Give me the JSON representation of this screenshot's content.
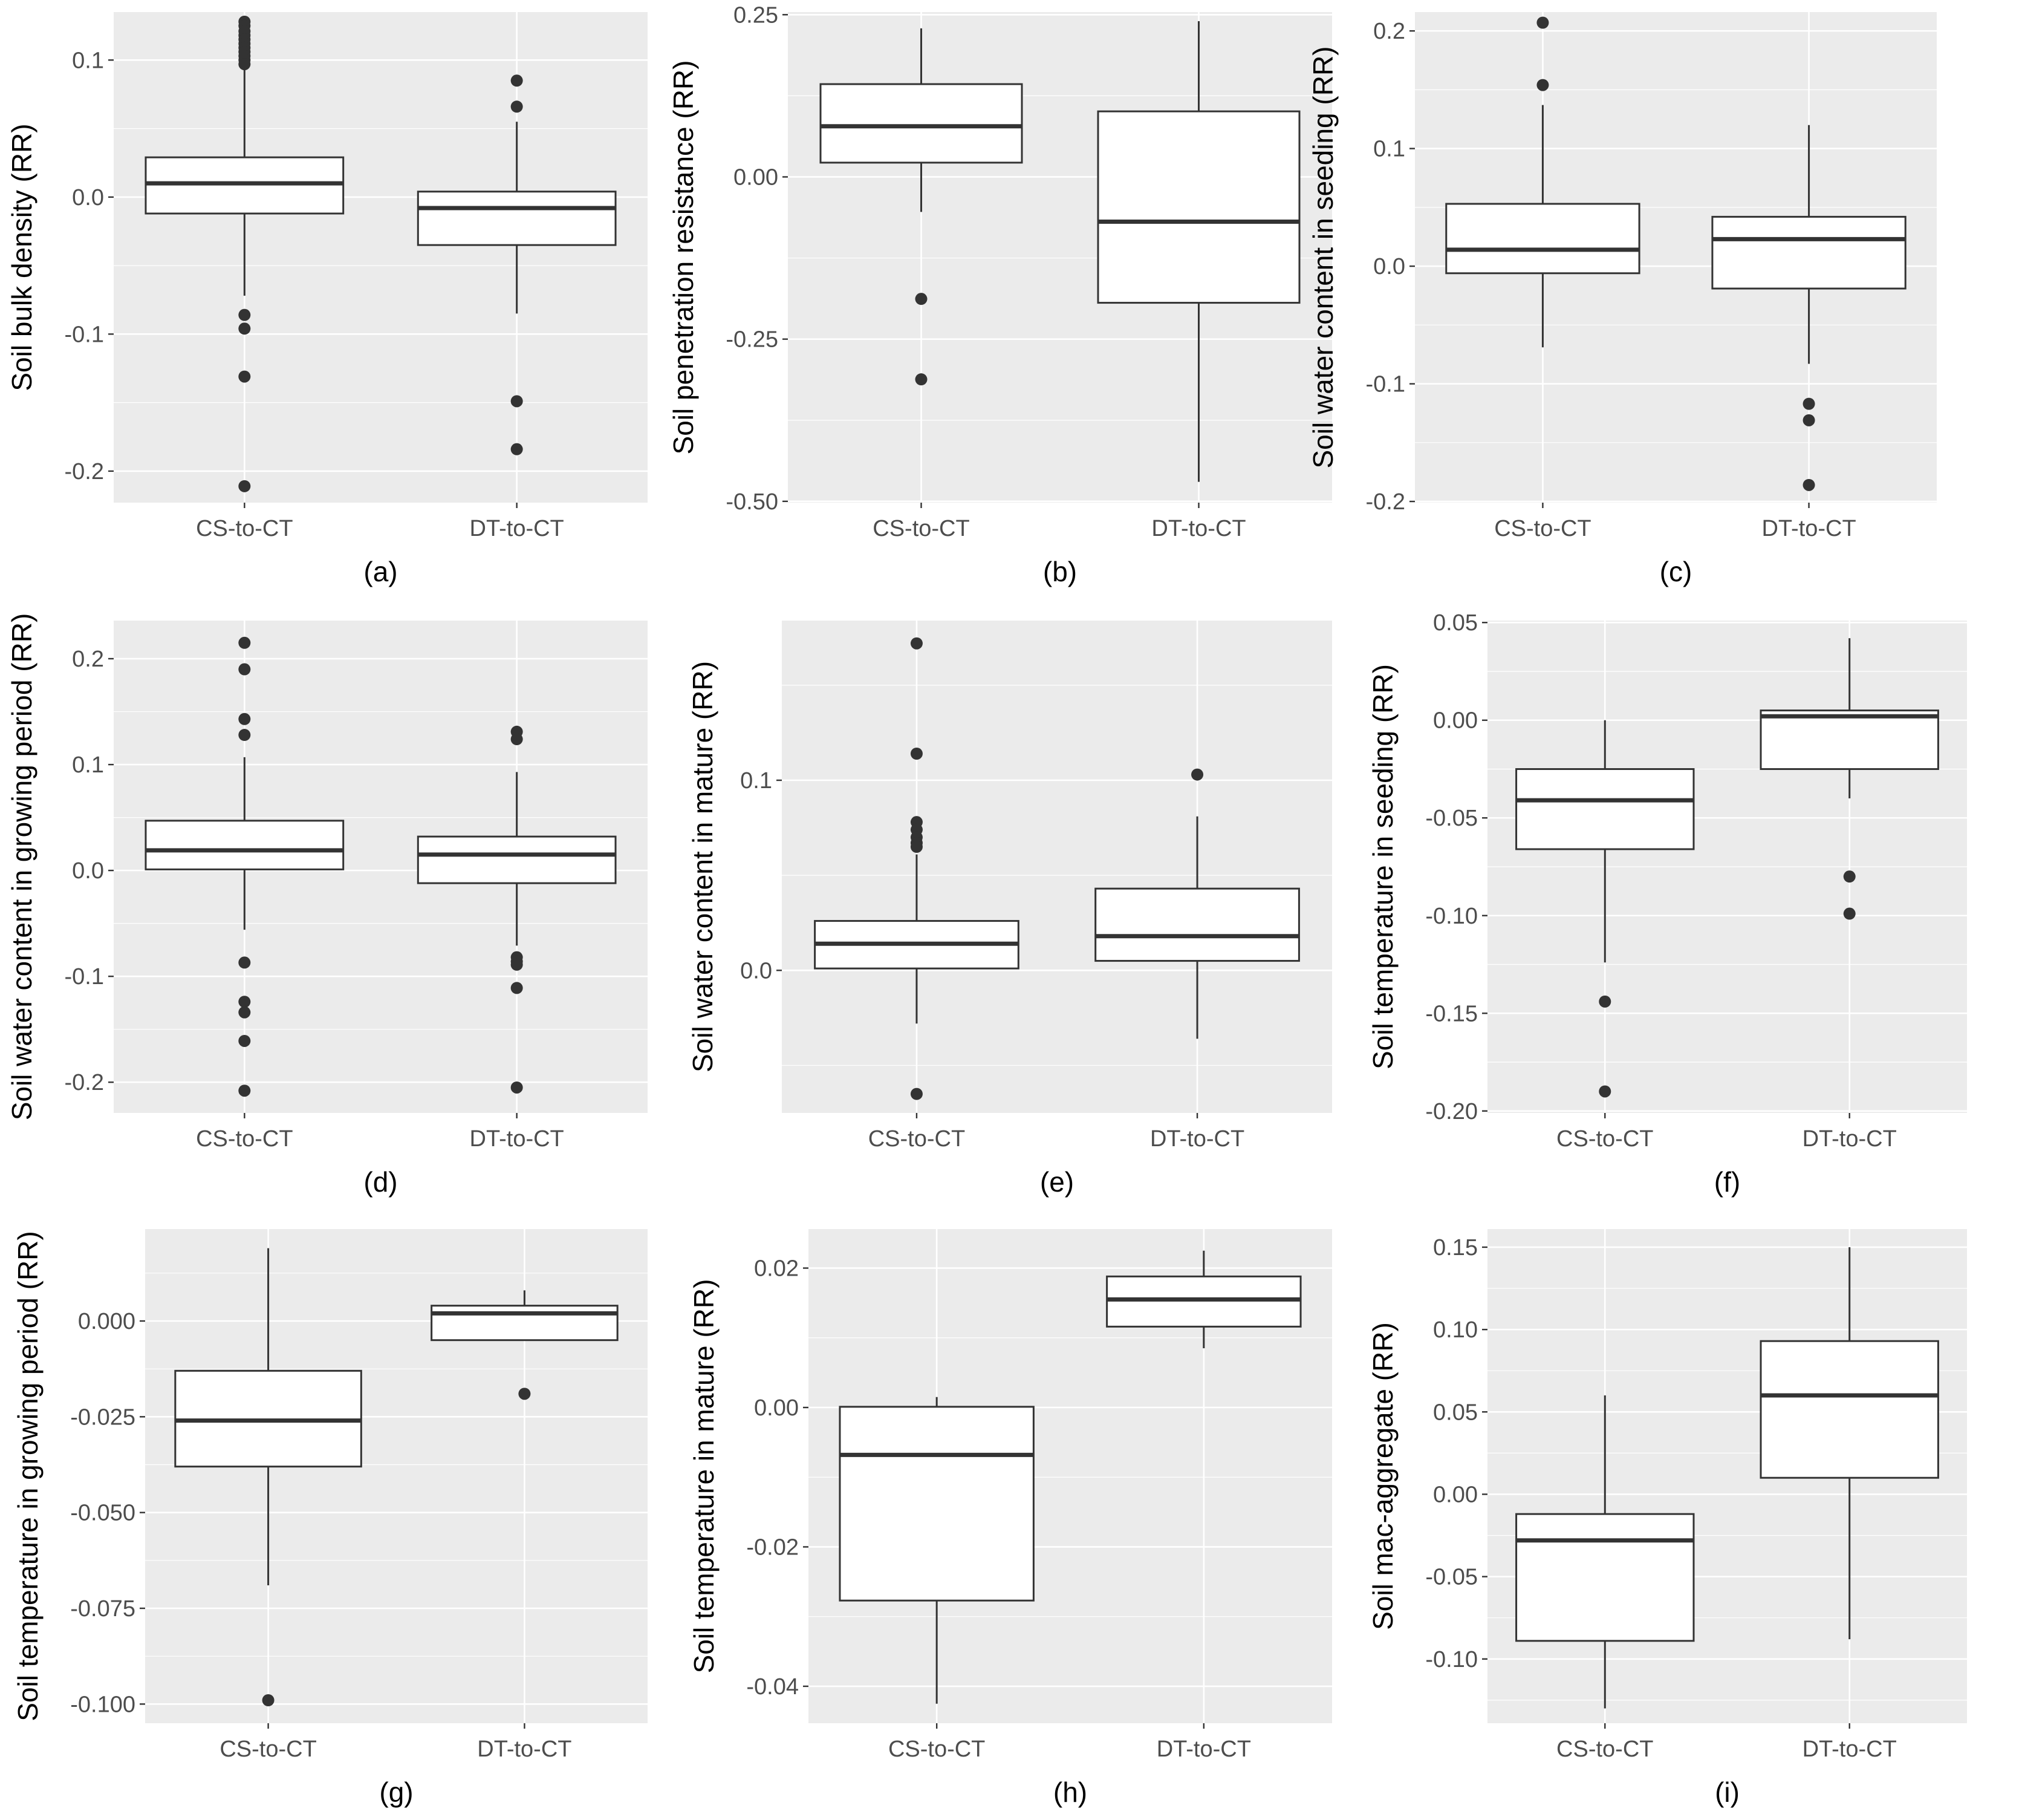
{
  "chart_data": [
    {
      "type": "box",
      "caption": "(a)",
      "ylabel": "Soil bulk density (RR)",
      "categories": [
        "CS-to-CT",
        "DT-to-CT"
      ],
      "ylim": [
        -0.223,
        0.135
      ],
      "yticks": [
        -0.2,
        -0.1,
        0.0,
        0.1
      ],
      "ytick_labels": [
        "-0.2",
        "-0.1",
        "0.0",
        "0.1"
      ],
      "boxes": [
        {
          "category": "CS-to-CT",
          "lower_whisker": -0.072,
          "q1": -0.012,
          "median": 0.01,
          "q3": 0.029,
          "upper_whisker": 0.093,
          "outliers": [
            0.128,
            0.125,
            0.121,
            0.118,
            0.115,
            0.112,
            0.109,
            0.106,
            0.103,
            0.1,
            0.097,
            -0.086,
            -0.096,
            -0.131,
            -0.211
          ]
        },
        {
          "category": "DT-to-CT",
          "lower_whisker": -0.085,
          "q1": -0.035,
          "median": -0.008,
          "q3": 0.004,
          "upper_whisker": 0.055,
          "outliers": [
            0.085,
            0.066,
            -0.149,
            -0.184
          ]
        }
      ]
    },
    {
      "type": "box",
      "caption": "(b)",
      "ylabel": "Soil penetration resistance (RR)",
      "categories": [
        "CS-to-CT",
        "DT-to-CT"
      ],
      "ylim": [
        -0.502,
        0.254
      ],
      "yticks": [
        -0.5,
        -0.25,
        0.0,
        0.25
      ],
      "ytick_labels": [
        "-0.50",
        "-0.25",
        "0.00",
        "0.25"
      ],
      "boxes": [
        {
          "category": "CS-to-CT",
          "lower_whisker": -0.054,
          "q1": 0.022,
          "median": 0.078,
          "q3": 0.143,
          "upper_whisker": 0.229,
          "outliers": [
            -0.188,
            -0.312
          ]
        },
        {
          "category": "DT-to-CT",
          "lower_whisker": -0.47,
          "q1": -0.194,
          "median": -0.069,
          "q3": 0.101,
          "upper_whisker": 0.24,
          "outliers": []
        }
      ]
    },
    {
      "type": "box",
      "caption": "(c)",
      "ylabel": "Soil water content in seeding (RR)",
      "categories": [
        "CS-to-CT",
        "DT-to-CT"
      ],
      "ylim": [
        -0.201,
        0.216
      ],
      "yticks": [
        -0.2,
        -0.1,
        0.0,
        0.1,
        0.2
      ],
      "ytick_labels": [
        "-0.2",
        "-0.1",
        "0.0",
        "0.1",
        "0.2"
      ],
      "boxes": [
        {
          "category": "CS-to-CT",
          "lower_whisker": -0.069,
          "q1": -0.006,
          "median": 0.014,
          "q3": 0.053,
          "upper_whisker": 0.137,
          "outliers": [
            0.207,
            0.154
          ]
        },
        {
          "category": "DT-to-CT",
          "lower_whisker": -0.083,
          "q1": -0.019,
          "median": 0.023,
          "q3": 0.042,
          "upper_whisker": 0.12,
          "outliers": [
            -0.117,
            -0.131,
            -0.186
          ]
        }
      ]
    },
    {
      "type": "box",
      "caption": "(d)",
      "ylabel": "Soil water content in growing period (RR)",
      "categories": [
        "CS-to-CT",
        "DT-to-CT"
      ],
      "ylim": [
        -0.229,
        0.236
      ],
      "yticks": [
        -0.2,
        -0.1,
        0.0,
        0.1,
        0.2
      ],
      "ytick_labels": [
        "-0.2",
        "-0.1",
        "0.0",
        "0.1",
        "0.2"
      ],
      "boxes": [
        {
          "category": "CS-to-CT",
          "lower_whisker": -0.056,
          "q1": 0.001,
          "median": 0.019,
          "q3": 0.047,
          "upper_whisker": 0.107,
          "outliers": [
            0.215,
            0.19,
            0.143,
            0.128,
            -0.087,
            -0.124,
            -0.134,
            -0.161,
            -0.208
          ]
        },
        {
          "category": "DT-to-CT",
          "lower_whisker": -0.071,
          "q1": -0.012,
          "median": 0.015,
          "q3": 0.032,
          "upper_whisker": 0.093,
          "outliers": [
            0.131,
            0.124,
            -0.082,
            -0.086,
            -0.089,
            -0.111,
            -0.205
          ]
        }
      ]
    },
    {
      "type": "box",
      "caption": "(e)",
      "ylabel": "Soil water content in mature (RR)",
      "categories": [
        "CS-to-CT",
        "DT-to-CT"
      ],
      "ylim": [
        -0.075,
        0.184
      ],
      "yticks": [
        0.0,
        0.1
      ],
      "ytick_labels": [
        "0.0",
        "0.1"
      ],
      "boxes": [
        {
          "category": "CS-to-CT",
          "lower_whisker": -0.028,
          "q1": 0.001,
          "median": 0.014,
          "q3": 0.026,
          "upper_whisker": 0.061,
          "outliers": [
            0.172,
            0.114,
            0.078,
            0.074,
            0.07,
            0.067,
            0.065,
            -0.065
          ]
        },
        {
          "category": "DT-to-CT",
          "lower_whisker": -0.036,
          "q1": 0.005,
          "median": 0.018,
          "q3": 0.043,
          "upper_whisker": 0.081,
          "outliers": [
            0.103
          ]
        }
      ]
    },
    {
      "type": "box",
      "caption": "(f)",
      "ylabel": "Soil temperature in seeding (RR)",
      "categories": [
        "CS-to-CT",
        "DT-to-CT"
      ],
      "ylim": [
        -0.201,
        0.051
      ],
      "yticks": [
        -0.2,
        -0.15,
        -0.1,
        -0.05,
        0.0,
        0.05
      ],
      "ytick_labels": [
        "-0.20",
        "-0.15",
        "-0.10",
        "-0.05",
        "0.00",
        "0.05"
      ],
      "boxes": [
        {
          "category": "CS-to-CT",
          "lower_whisker": -0.124,
          "q1": -0.066,
          "median": -0.041,
          "q3": -0.025,
          "upper_whisker": 0.0,
          "outliers": [
            -0.144,
            -0.19
          ]
        },
        {
          "category": "DT-to-CT",
          "lower_whisker": -0.04,
          "q1": -0.025,
          "median": 0.002,
          "q3": 0.005,
          "upper_whisker": 0.042,
          "outliers": [
            -0.08,
            -0.099
          ]
        }
      ]
    },
    {
      "type": "box",
      "caption": "(g)",
      "ylabel": "Soil temperature in growing period (RR)",
      "categories": [
        "CS-to-CT",
        "DT-to-CT"
      ],
      "ylim": [
        -0.105,
        0.024
      ],
      "yticks": [
        -0.1,
        -0.075,
        -0.05,
        -0.025,
        0.0
      ],
      "ytick_labels": [
        "-0.100",
        "-0.075",
        "-0.050",
        "-0.025",
        "0.000"
      ],
      "boxes": [
        {
          "category": "CS-to-CT",
          "lower_whisker": -0.069,
          "q1": -0.038,
          "median": -0.026,
          "q3": -0.013,
          "upper_whisker": 0.019,
          "outliers": [
            -0.099
          ]
        },
        {
          "category": "DT-to-CT",
          "lower_whisker": -0.005,
          "q1": -0.005,
          "median": 0.002,
          "q3": 0.004,
          "upper_whisker": 0.008,
          "outliers": [
            -0.019
          ]
        }
      ]
    },
    {
      "type": "box",
      "caption": "(h)",
      "ylabel": "Soil temperature in mature (RR)",
      "categories": [
        "CS-to-CT",
        "DT-to-CT"
      ],
      "ylim": [
        -0.0453,
        0.0256
      ],
      "yticks": [
        -0.04,
        -0.02,
        0.0,
        0.02
      ],
      "ytick_labels": [
        "-0.04",
        "-0.02",
        "0.00",
        "0.02"
      ],
      "boxes": [
        {
          "category": "CS-to-CT",
          "lower_whisker": -0.0425,
          "q1": -0.0277,
          "median": -0.0068,
          "q3": 0.0001,
          "upper_whisker": 0.0015,
          "outliers": []
        },
        {
          "category": "DT-to-CT",
          "lower_whisker": 0.0085,
          "q1": 0.0116,
          "median": 0.0155,
          "q3": 0.0188,
          "upper_whisker": 0.0225,
          "outliers": []
        }
      ]
    },
    {
      "type": "box",
      "caption": "(i)",
      "ylabel": "Soil mac-aggregate (RR)",
      "categories": [
        "CS-to-CT",
        "DT-to-CT"
      ],
      "ylim": [
        -0.139,
        0.161
      ],
      "yticks": [
        -0.1,
        -0.05,
        0.0,
        0.05,
        0.1,
        0.15
      ],
      "ytick_labels": [
        "-0.10",
        "-0.05",
        "0.00",
        "0.05",
        "0.10",
        "0.15"
      ],
      "boxes": [
        {
          "category": "CS-to-CT",
          "lower_whisker": -0.13,
          "q1": -0.089,
          "median": -0.028,
          "q3": -0.012,
          "upper_whisker": 0.06,
          "outliers": []
        },
        {
          "category": "DT-to-CT",
          "lower_whisker": -0.088,
          "q1": 0.01,
          "median": 0.06,
          "q3": 0.093,
          "upper_whisker": 0.15,
          "outliers": []
        }
      ]
    }
  ]
}
